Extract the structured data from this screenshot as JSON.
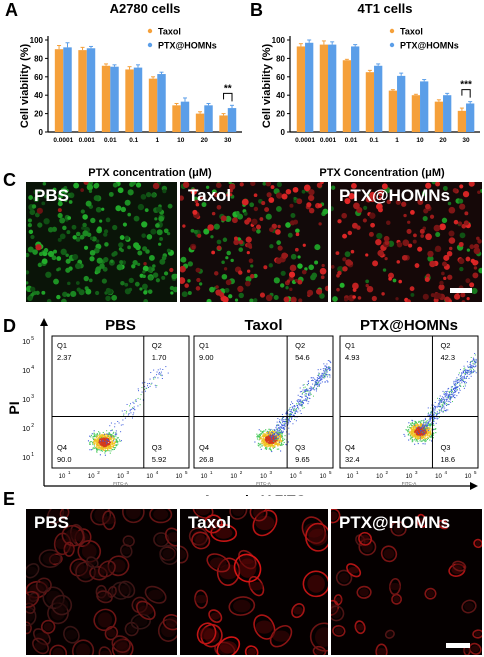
{
  "panels": {
    "a": "A",
    "b": "B",
    "c": "C",
    "d": "D",
    "e": "E"
  },
  "colors": {
    "taxol": "#F5A03A",
    "ptx": "#5B9EE8"
  },
  "chart_data": [
    {
      "type": "bar",
      "title": "A2780 cells",
      "xlabel": "PTX concentration (μM)",
      "ylabel": "Cell viability (%)",
      "ylim": [
        0,
        100
      ],
      "yticks": [
        "0",
        "20",
        "40",
        "60",
        "80",
        "100"
      ],
      "categories": [
        "0.0001",
        "0.001",
        "0.01",
        "0.1",
        "1",
        "10",
        "20",
        "30"
      ],
      "series": [
        {
          "name": "Taxol",
          "values": [
            90,
            89,
            72,
            68,
            58,
            29,
            20,
            18
          ],
          "errors": [
            4,
            3,
            2,
            3,
            2,
            2,
            2,
            2
          ]
        },
        {
          "name": "PTX@HOMNs",
          "values": [
            92,
            91,
            71,
            70,
            63,
            33,
            29,
            26
          ],
          "errors": [
            5,
            2,
            2,
            3,
            2,
            4,
            2,
            3
          ]
        }
      ],
      "annotation": "**",
      "legend": "top-right"
    },
    {
      "type": "bar",
      "title": "4T1 cells",
      "xlabel": "PTX Concentration (μM)",
      "ylabel": "Cell viability (%)",
      "ylim": [
        0,
        100
      ],
      "yticks": [
        "0",
        "20",
        "40",
        "60",
        "80",
        "100"
      ],
      "categories": [
        "0.0001",
        "0.001",
        "0.01",
        "0.1",
        "1",
        "10",
        "20",
        "30"
      ],
      "series": [
        {
          "name": "Taxol",
          "values": [
            93,
            95,
            78,
            65,
            45,
            40,
            33,
            23
          ],
          "errors": [
            3,
            4,
            1,
            2,
            1,
            1,
            2,
            3
          ]
        },
        {
          "name": "PTX@HOMNs",
          "values": [
            97,
            95,
            93,
            72,
            61,
            55,
            40,
            31
          ],
          "errors": [
            3,
            3,
            2,
            2,
            3,
            2,
            2,
            2
          ]
        }
      ],
      "annotation": "***",
      "legend": "top-right"
    },
    {
      "type": "scatter",
      "xlabel": "Annexin V-FITC",
      "ylabel": "PI",
      "axis_tick_label": "FITC-A",
      "plots": [
        {
          "name": "PBS",
          "q1": "2.37",
          "q2": "1.70",
          "q3": "5.92",
          "q4": "90.0"
        },
        {
          "name": "Taxol",
          "q1": "9.00",
          "q2": "54.6",
          "q3": "9.65",
          "q4": "26.8"
        },
        {
          "name": "PTX@HOMNs",
          "q1": "4.93",
          "q2": "42.3",
          "q3": "18.6",
          "q4": "32.4"
        }
      ],
      "quadrant_names": [
        "Q1",
        "Q2",
        "Q3",
        "Q4"
      ]
    }
  ],
  "micrographs_c": [
    "PBS",
    "Taxol",
    "PTX@HOMNs"
  ],
  "micrographs_e": [
    "PBS",
    "Taxol",
    "PTX@HOMNs"
  ]
}
